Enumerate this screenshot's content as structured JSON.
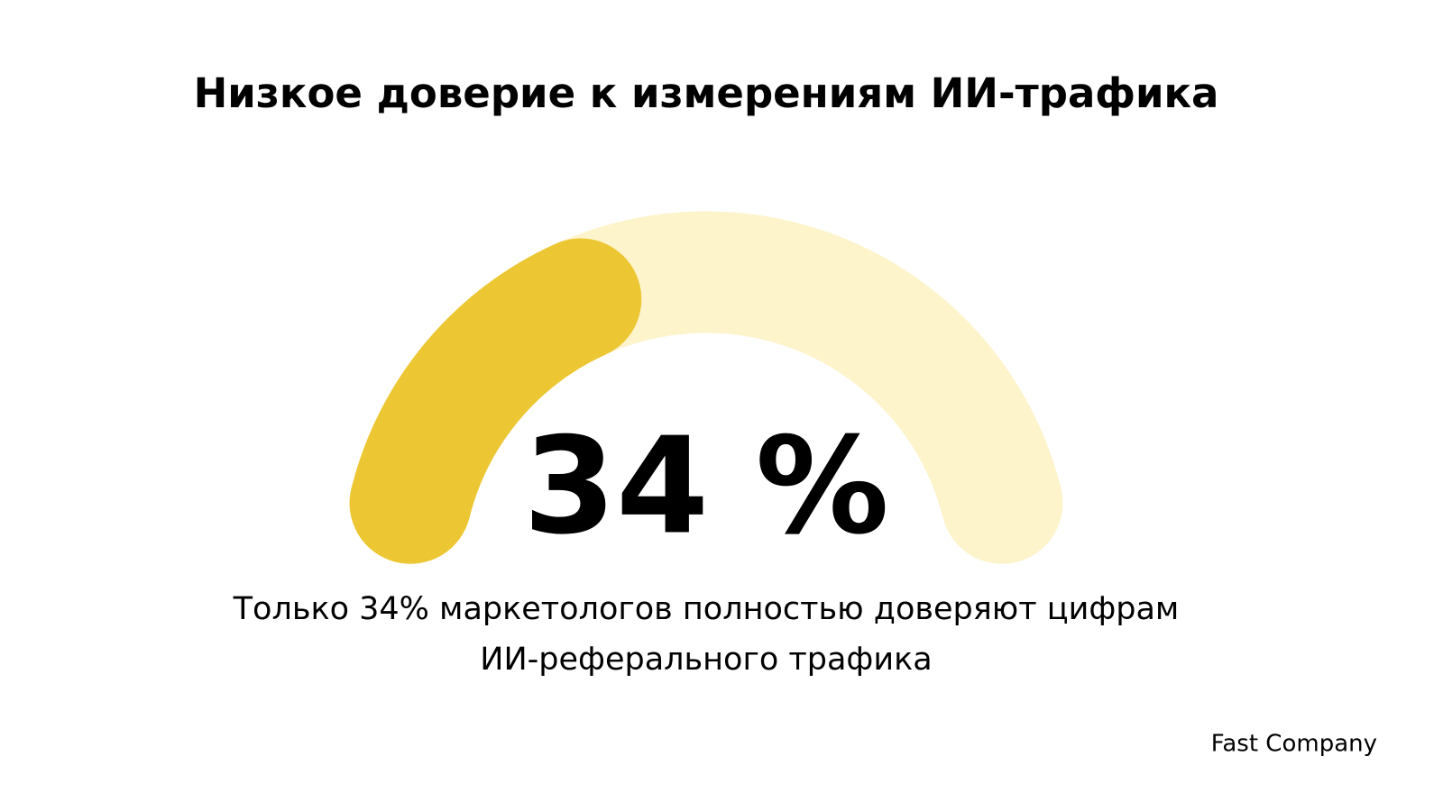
{
  "chart_data": {
    "type": "gauge",
    "title": "Низкое доверие к измерениям ИИ-трафика",
    "values": [
      34
    ],
    "value_labels": [
      "34 %"
    ],
    "ylim": [
      0,
      100
    ],
    "color": "#ecc733",
    "track_color": "#fdf4cc",
    "description": [
      "Только 34% маркетологов полностью доверяют цифрам",
      "ИИ-реферального трафика"
    ],
    "source": "Fast Company"
  }
}
